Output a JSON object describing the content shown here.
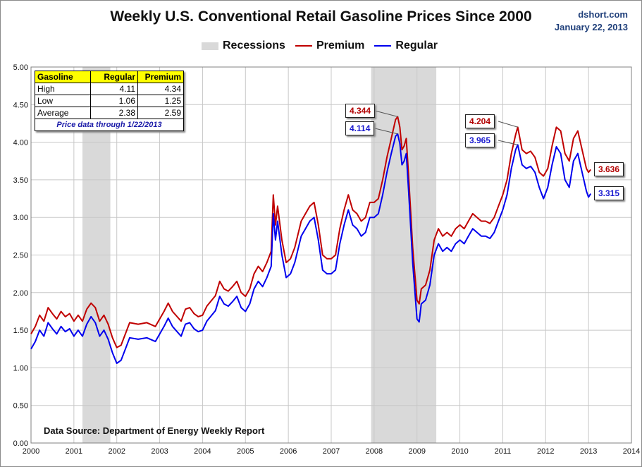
{
  "title": "Weekly U.S. Conventional Retail Gasoline Prices Since 2000",
  "site": "dshort.com",
  "date": "January 22, 2013",
  "legend": {
    "recessions": "Recessions",
    "premium": "Premium",
    "regular": "Regular"
  },
  "colors": {
    "premium": "#c00000",
    "regular": "#0000ee",
    "recession": "#d9d9d9"
  },
  "stats_table": {
    "headers": [
      "Gasoline",
      "Regular",
      "Premium"
    ],
    "rows": [
      {
        "label": "High",
        "regular": "4.11",
        "premium": "4.34"
      },
      {
        "label": "Low",
        "regular": "1.06",
        "premium": "1.25"
      },
      {
        "label": "Average",
        "regular": "2.38",
        "premium": "2.59"
      }
    ],
    "note": "Price data through 1/22/2013"
  },
  "source": "Data Source: Department of Energy Weekly Report",
  "callouts": {
    "peak2008_premium": "4.344",
    "peak2008_regular": "4.114",
    "peak2011_premium": "4.204",
    "peak2011_regular": "3.965",
    "latest_premium": "3.636",
    "latest_regular": "3.315"
  },
  "chart_data": {
    "type": "line",
    "xlim": [
      2000,
      2014
    ],
    "ylim": [
      0,
      5
    ],
    "x_ticks": [
      "2000",
      "2001",
      "2002",
      "2003",
      "2004",
      "2005",
      "2006",
      "2007",
      "2008",
      "2009",
      "2010",
      "2011",
      "2012",
      "2013",
      "2014"
    ],
    "y_ticks": [
      "0.00",
      "0.50",
      "1.00",
      "1.50",
      "2.00",
      "2.50",
      "3.00",
      "3.50",
      "4.00",
      "4.50",
      "5.00"
    ],
    "grid": true,
    "recessions": [
      [
        2001.2,
        2001.85
      ],
      [
        2007.93,
        2009.45
      ]
    ],
    "series": [
      {
        "name": "Premium",
        "color": "#c00000",
        "points": [
          [
            2000.0,
            1.45
          ],
          [
            2000.1,
            1.55
          ],
          [
            2000.2,
            1.7
          ],
          [
            2000.3,
            1.62
          ],
          [
            2000.4,
            1.8
          ],
          [
            2000.5,
            1.72
          ],
          [
            2000.6,
            1.65
          ],
          [
            2000.7,
            1.75
          ],
          [
            2000.8,
            1.68
          ],
          [
            2000.9,
            1.72
          ],
          [
            2001.0,
            1.62
          ],
          [
            2001.1,
            1.7
          ],
          [
            2001.2,
            1.62
          ],
          [
            2001.3,
            1.78
          ],
          [
            2001.4,
            1.86
          ],
          [
            2001.5,
            1.8
          ],
          [
            2001.6,
            1.62
          ],
          [
            2001.7,
            1.7
          ],
          [
            2001.8,
            1.58
          ],
          [
            2001.9,
            1.4
          ],
          [
            2002.0,
            1.27
          ],
          [
            2002.1,
            1.3
          ],
          [
            2002.2,
            1.45
          ],
          [
            2002.3,
            1.6
          ],
          [
            2002.5,
            1.58
          ],
          [
            2002.7,
            1.6
          ],
          [
            2002.9,
            1.55
          ],
          [
            2003.1,
            1.75
          ],
          [
            2003.2,
            1.86
          ],
          [
            2003.3,
            1.75
          ],
          [
            2003.5,
            1.62
          ],
          [
            2003.6,
            1.78
          ],
          [
            2003.7,
            1.8
          ],
          [
            2003.8,
            1.72
          ],
          [
            2003.9,
            1.68
          ],
          [
            2004.0,
            1.7
          ],
          [
            2004.1,
            1.82
          ],
          [
            2004.3,
            1.96
          ],
          [
            2004.4,
            2.15
          ],
          [
            2004.5,
            2.05
          ],
          [
            2004.6,
            2.02
          ],
          [
            2004.7,
            2.08
          ],
          [
            2004.8,
            2.15
          ],
          [
            2004.9,
            2.0
          ],
          [
            2005.0,
            1.95
          ],
          [
            2005.1,
            2.05
          ],
          [
            2005.2,
            2.25
          ],
          [
            2005.3,
            2.35
          ],
          [
            2005.4,
            2.28
          ],
          [
            2005.5,
            2.4
          ],
          [
            2005.6,
            2.55
          ],
          [
            2005.65,
            3.3
          ],
          [
            2005.7,
            2.9
          ],
          [
            2005.75,
            3.15
          ],
          [
            2005.85,
            2.7
          ],
          [
            2005.95,
            2.4
          ],
          [
            2006.05,
            2.45
          ],
          [
            2006.15,
            2.6
          ],
          [
            2006.3,
            2.95
          ],
          [
            2006.4,
            3.05
          ],
          [
            2006.5,
            3.15
          ],
          [
            2006.6,
            3.2
          ],
          [
            2006.7,
            2.9
          ],
          [
            2006.8,
            2.5
          ],
          [
            2006.9,
            2.45
          ],
          [
            2007.0,
            2.45
          ],
          [
            2007.1,
            2.5
          ],
          [
            2007.2,
            2.85
          ],
          [
            2007.3,
            3.1
          ],
          [
            2007.4,
            3.3
          ],
          [
            2007.5,
            3.1
          ],
          [
            2007.6,
            3.05
          ],
          [
            2007.7,
            2.95
          ],
          [
            2007.8,
            3.0
          ],
          [
            2007.9,
            3.2
          ],
          [
            2008.0,
            3.2
          ],
          [
            2008.1,
            3.25
          ],
          [
            2008.2,
            3.5
          ],
          [
            2008.3,
            3.8
          ],
          [
            2008.4,
            4.05
          ],
          [
            2008.5,
            4.3
          ],
          [
            2008.55,
            4.34
          ],
          [
            2008.6,
            4.2
          ],
          [
            2008.65,
            3.9
          ],
          [
            2008.7,
            3.95
          ],
          [
            2008.75,
            4.05
          ],
          [
            2008.8,
            3.6
          ],
          [
            2008.85,
            3.1
          ],
          [
            2008.9,
            2.6
          ],
          [
            2009.0,
            1.9
          ],
          [
            2009.05,
            1.85
          ],
          [
            2009.1,
            2.05
          ],
          [
            2009.2,
            2.1
          ],
          [
            2009.3,
            2.3
          ],
          [
            2009.4,
            2.7
          ],
          [
            2009.5,
            2.85
          ],
          [
            2009.6,
            2.75
          ],
          [
            2009.7,
            2.8
          ],
          [
            2009.8,
            2.75
          ],
          [
            2009.9,
            2.85
          ],
          [
            2010.0,
            2.9
          ],
          [
            2010.1,
            2.85
          ],
          [
            2010.2,
            2.95
          ],
          [
            2010.3,
            3.05
          ],
          [
            2010.4,
            3.0
          ],
          [
            2010.5,
            2.95
          ],
          [
            2010.6,
            2.95
          ],
          [
            2010.7,
            2.92
          ],
          [
            2010.8,
            3.0
          ],
          [
            2010.9,
            3.15
          ],
          [
            2011.0,
            3.3
          ],
          [
            2011.1,
            3.5
          ],
          [
            2011.2,
            3.85
          ],
          [
            2011.3,
            4.1
          ],
          [
            2011.35,
            4.2
          ],
          [
            2011.45,
            3.9
          ],
          [
            2011.55,
            3.85
          ],
          [
            2011.65,
            3.88
          ],
          [
            2011.75,
            3.8
          ],
          [
            2011.85,
            3.6
          ],
          [
            2011.95,
            3.55
          ],
          [
            2012.05,
            3.65
          ],
          [
            2012.15,
            3.95
          ],
          [
            2012.25,
            4.2
          ],
          [
            2012.35,
            4.15
          ],
          [
            2012.45,
            3.85
          ],
          [
            2012.55,
            3.75
          ],
          [
            2012.65,
            4.05
          ],
          [
            2012.75,
            4.15
          ],
          [
            2012.85,
            3.9
          ],
          [
            2012.95,
            3.65
          ],
          [
            2013.0,
            3.6
          ],
          [
            2013.05,
            3.636
          ]
        ]
      },
      {
        "name": "Regular",
        "color": "#0000ee",
        "points": [
          [
            2000.0,
            1.25
          ],
          [
            2000.1,
            1.35
          ],
          [
            2000.2,
            1.5
          ],
          [
            2000.3,
            1.42
          ],
          [
            2000.4,
            1.6
          ],
          [
            2000.5,
            1.52
          ],
          [
            2000.6,
            1.45
          ],
          [
            2000.7,
            1.55
          ],
          [
            2000.8,
            1.48
          ],
          [
            2000.9,
            1.52
          ],
          [
            2001.0,
            1.42
          ],
          [
            2001.1,
            1.5
          ],
          [
            2001.2,
            1.42
          ],
          [
            2001.3,
            1.58
          ],
          [
            2001.4,
            1.68
          ],
          [
            2001.5,
            1.6
          ],
          [
            2001.6,
            1.42
          ],
          [
            2001.7,
            1.5
          ],
          [
            2001.8,
            1.38
          ],
          [
            2001.9,
            1.2
          ],
          [
            2002.0,
            1.06
          ],
          [
            2002.1,
            1.1
          ],
          [
            2002.2,
            1.25
          ],
          [
            2002.3,
            1.4
          ],
          [
            2002.5,
            1.38
          ],
          [
            2002.7,
            1.4
          ],
          [
            2002.9,
            1.35
          ],
          [
            2003.1,
            1.55
          ],
          [
            2003.2,
            1.66
          ],
          [
            2003.3,
            1.55
          ],
          [
            2003.5,
            1.42
          ],
          [
            2003.6,
            1.58
          ],
          [
            2003.7,
            1.6
          ],
          [
            2003.8,
            1.52
          ],
          [
            2003.9,
            1.48
          ],
          [
            2004.0,
            1.5
          ],
          [
            2004.1,
            1.62
          ],
          [
            2004.3,
            1.76
          ],
          [
            2004.4,
            1.95
          ],
          [
            2004.5,
            1.85
          ],
          [
            2004.6,
            1.82
          ],
          [
            2004.7,
            1.88
          ],
          [
            2004.8,
            1.95
          ],
          [
            2004.9,
            1.8
          ],
          [
            2005.0,
            1.75
          ],
          [
            2005.1,
            1.85
          ],
          [
            2005.2,
            2.05
          ],
          [
            2005.3,
            2.15
          ],
          [
            2005.4,
            2.08
          ],
          [
            2005.5,
            2.2
          ],
          [
            2005.6,
            2.35
          ],
          [
            2005.65,
            3.05
          ],
          [
            2005.7,
            2.7
          ],
          [
            2005.75,
            2.95
          ],
          [
            2005.85,
            2.5
          ],
          [
            2005.95,
            2.2
          ],
          [
            2006.05,
            2.25
          ],
          [
            2006.15,
            2.4
          ],
          [
            2006.3,
            2.75
          ],
          [
            2006.4,
            2.85
          ],
          [
            2006.5,
            2.95
          ],
          [
            2006.6,
            3.0
          ],
          [
            2006.7,
            2.7
          ],
          [
            2006.8,
            2.3
          ],
          [
            2006.9,
            2.25
          ],
          [
            2007.0,
            2.25
          ],
          [
            2007.1,
            2.3
          ],
          [
            2007.2,
            2.65
          ],
          [
            2007.3,
            2.9
          ],
          [
            2007.4,
            3.1
          ],
          [
            2007.5,
            2.9
          ],
          [
            2007.6,
            2.85
          ],
          [
            2007.7,
            2.75
          ],
          [
            2007.8,
            2.8
          ],
          [
            2007.9,
            3.0
          ],
          [
            2008.0,
            3.0
          ],
          [
            2008.1,
            3.05
          ],
          [
            2008.2,
            3.3
          ],
          [
            2008.3,
            3.6
          ],
          [
            2008.4,
            3.85
          ],
          [
            2008.5,
            4.08
          ],
          [
            2008.55,
            4.11
          ],
          [
            2008.6,
            3.98
          ],
          [
            2008.65,
            3.7
          ],
          [
            2008.7,
            3.75
          ],
          [
            2008.75,
            3.85
          ],
          [
            2008.8,
            3.4
          ],
          [
            2008.85,
            2.9
          ],
          [
            2008.9,
            2.4
          ],
          [
            2009.0,
            1.65
          ],
          [
            2009.05,
            1.61
          ],
          [
            2009.1,
            1.85
          ],
          [
            2009.2,
            1.9
          ],
          [
            2009.3,
            2.1
          ],
          [
            2009.4,
            2.5
          ],
          [
            2009.5,
            2.65
          ],
          [
            2009.6,
            2.55
          ],
          [
            2009.7,
            2.6
          ],
          [
            2009.8,
            2.55
          ],
          [
            2009.9,
            2.65
          ],
          [
            2010.0,
            2.7
          ],
          [
            2010.1,
            2.65
          ],
          [
            2010.2,
            2.75
          ],
          [
            2010.3,
            2.85
          ],
          [
            2010.4,
            2.8
          ],
          [
            2010.5,
            2.75
          ],
          [
            2010.6,
            2.75
          ],
          [
            2010.7,
            2.72
          ],
          [
            2010.8,
            2.8
          ],
          [
            2010.9,
            2.95
          ],
          [
            2011.0,
            3.1
          ],
          [
            2011.1,
            3.3
          ],
          [
            2011.2,
            3.65
          ],
          [
            2011.3,
            3.9
          ],
          [
            2011.35,
            3.965
          ],
          [
            2011.45,
            3.7
          ],
          [
            2011.55,
            3.65
          ],
          [
            2011.65,
            3.68
          ],
          [
            2011.75,
            3.6
          ],
          [
            2011.85,
            3.4
          ],
          [
            2011.95,
            3.25
          ],
          [
            2012.05,
            3.4
          ],
          [
            2012.15,
            3.7
          ],
          [
            2012.25,
            3.94
          ],
          [
            2012.35,
            3.85
          ],
          [
            2012.45,
            3.5
          ],
          [
            2012.55,
            3.4
          ],
          [
            2012.65,
            3.75
          ],
          [
            2012.75,
            3.85
          ],
          [
            2012.85,
            3.6
          ],
          [
            2012.95,
            3.35
          ],
          [
            2013.0,
            3.27
          ],
          [
            2013.05,
            3.315
          ]
        ]
      }
    ]
  }
}
